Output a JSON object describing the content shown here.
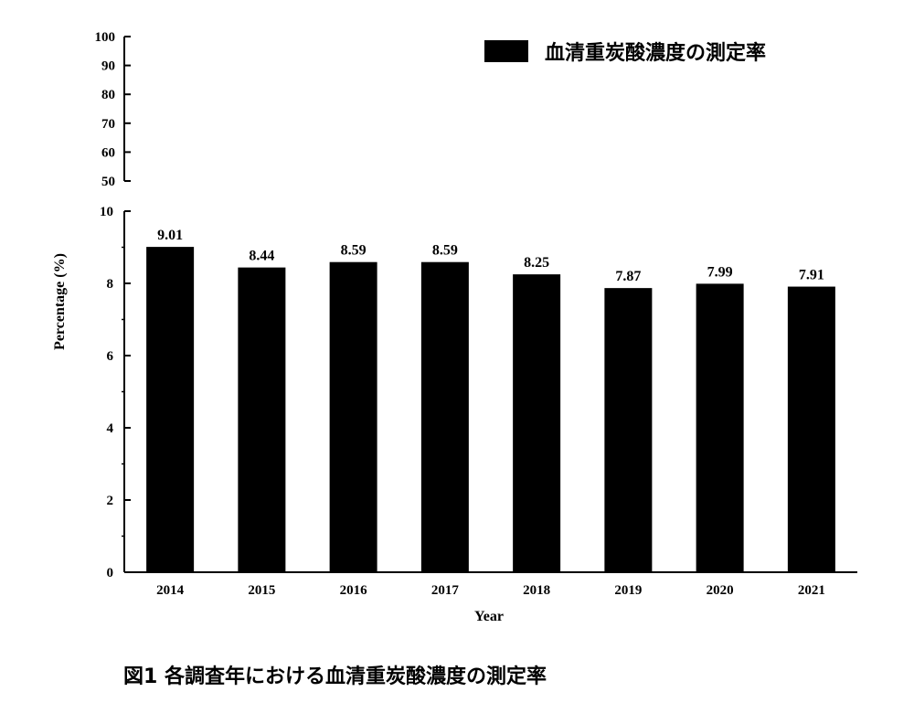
{
  "chart_data": {
    "type": "bar",
    "categories": [
      "2014",
      "2015",
      "2016",
      "2017",
      "2018",
      "2019",
      "2020",
      "2021"
    ],
    "values": [
      9.01,
      8.44,
      8.59,
      8.59,
      8.25,
      7.87,
      7.99,
      7.91
    ],
    "data_labels": [
      "9.01",
      "8.44",
      "8.59",
      "8.59",
      "8.25",
      "7.87",
      "7.99",
      "7.91"
    ],
    "series": [
      {
        "name": "血清重炭酸濃度の測定率",
        "values": [
          9.01,
          8.44,
          8.59,
          8.59,
          8.25,
          7.87,
          7.99,
          7.91
        ]
      }
    ],
    "xlabel": "Year",
    "ylabel": "Percentage (%)",
    "y_axis_broken": true,
    "ylim_lower": [
      0,
      10
    ],
    "ylim_upper": [
      50,
      100
    ],
    "yticks_lower": [
      "0",
      "2",
      "4",
      "6",
      "8",
      "10"
    ],
    "yticks_upper": [
      "50",
      "60",
      "70",
      "80",
      "90",
      "100"
    ],
    "bar_color": "#000000",
    "grid": false,
    "legend_position": "top-right"
  },
  "caption": "図1 各調査年における血清重炭酸濃度の測定率"
}
